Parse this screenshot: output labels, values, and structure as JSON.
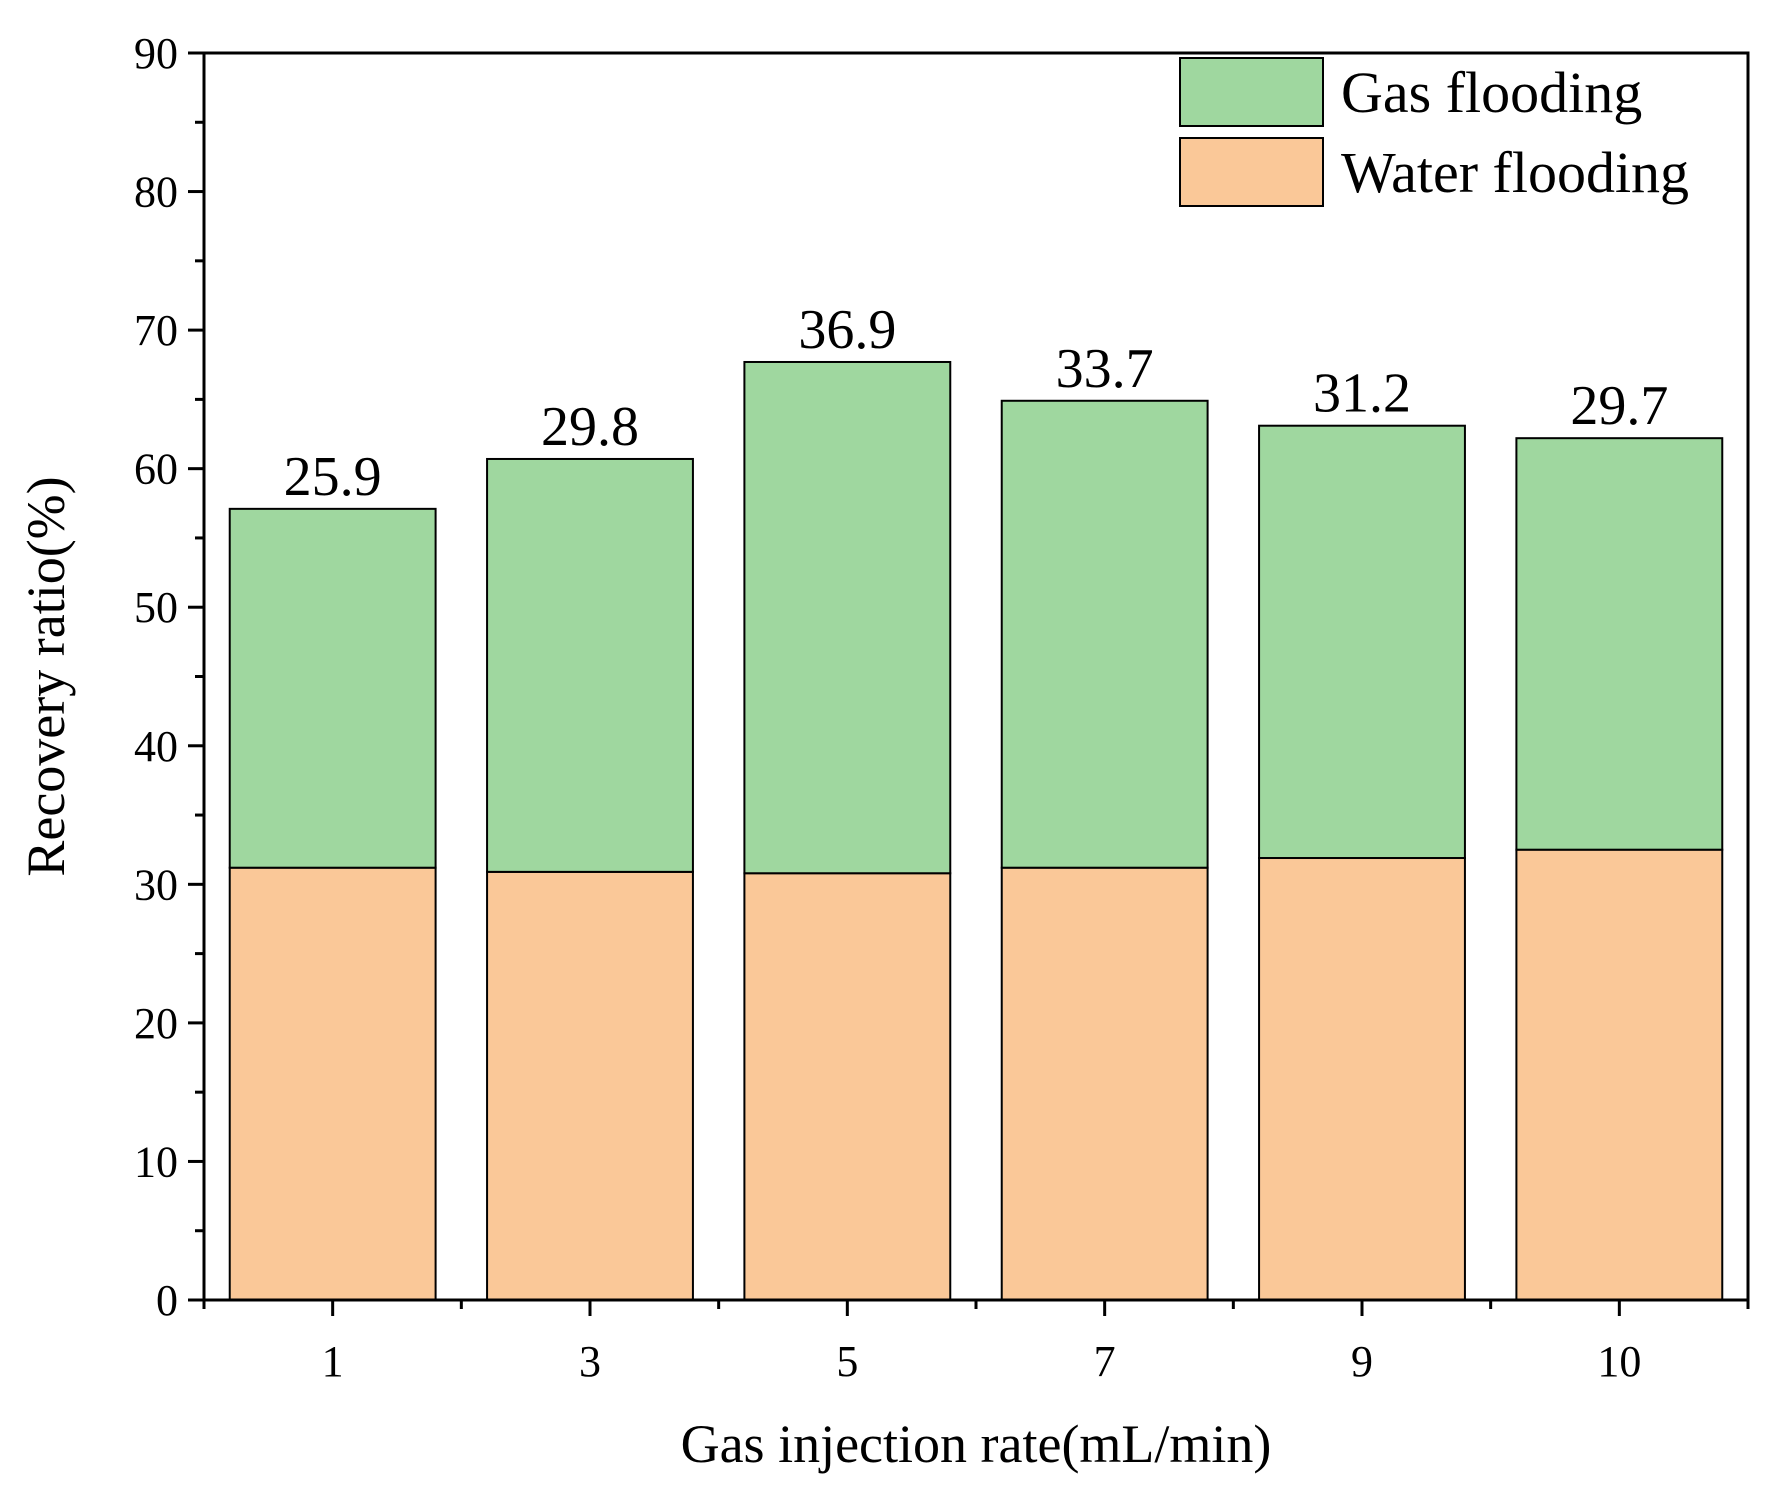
{
  "chart_data": {
    "type": "stacked-bar",
    "title": "",
    "xlabel": "Gas injection rate(mL/min)",
    "ylabel": "Recovery ratio(%)",
    "categories": [
      "1",
      "3",
      "5",
      "7",
      "9",
      "10"
    ],
    "series": [
      {
        "name": "Water flooding",
        "color": "#FAC898",
        "values": [
          31.2,
          30.9,
          30.8,
          31.2,
          31.9,
          32.5
        ]
      },
      {
        "name": "Gas flooding",
        "color": "#9FD79F",
        "values": [
          25.9,
          29.8,
          36.9,
          33.7,
          31.2,
          29.7
        ]
      }
    ],
    "data_labels": [
      "25.9",
      "29.8",
      "36.9",
      "33.7",
      "31.2",
      "29.7"
    ],
    "ylim": [
      0,
      90
    ],
    "yticks": [
      0,
      10,
      20,
      30,
      40,
      50,
      60,
      70,
      80,
      90
    ],
    "legend": {
      "position": "top-right",
      "entries": [
        {
          "label": "Gas flooding",
          "color": "#9FD79F"
        },
        {
          "label": "Water flooding",
          "color": "#FAC898"
        }
      ]
    },
    "grid": false
  }
}
